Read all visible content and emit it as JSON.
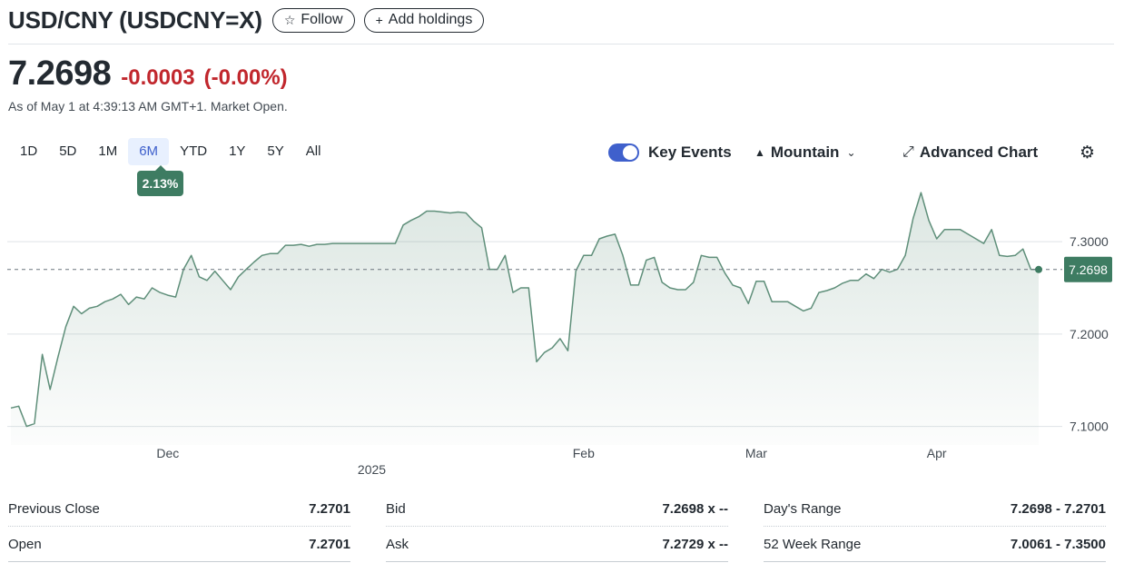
{
  "header": {
    "title": "USD/CNY (USDCNY=X)",
    "follow_label": "Follow",
    "add_holdings_label": "Add holdings"
  },
  "quote": {
    "price": "7.2698",
    "change": "-0.0003",
    "change_percent": "(-0.00%)",
    "as_of": "As of May 1 at 4:39:13 AM GMT+1. Market Open.",
    "colors": {
      "negative": "#c1272d",
      "accent": "#3f60cc",
      "chart_line": "#5f8f7a",
      "badge": "#3e7c62"
    }
  },
  "ranges": [
    "1D",
    "5D",
    "1M",
    "6M",
    "YTD",
    "1Y",
    "5Y",
    "All"
  ],
  "active_range": "6M",
  "period_return": "2.13%",
  "tools": {
    "key_events_label": "Key Events",
    "key_events_on": true,
    "chart_type_label": "Mountain",
    "advanced_label": "Advanced Chart"
  },
  "chart_data": {
    "type": "area",
    "ylim": [
      7.08,
      7.36
    ],
    "yticks": [
      "7.3000",
      "7.2000",
      "7.1000"
    ],
    "ytick_values": [
      7.3,
      7.2,
      7.1
    ],
    "xtick_labels": [
      "Dec",
      "Feb",
      "Mar",
      "Apr"
    ],
    "xtick_index": [
      20,
      73,
      95,
      118
    ],
    "year_label": "2025",
    "year_label_index": 46,
    "reference_value": 7.2698,
    "reference_label": "7.2698",
    "values": [
      7.12,
      7.122,
      7.1,
      7.103,
      7.178,
      7.14,
      7.175,
      7.208,
      7.23,
      7.222,
      7.228,
      7.23,
      7.235,
      7.238,
      7.243,
      7.232,
      7.24,
      7.238,
      7.25,
      7.245,
      7.242,
      7.24,
      7.27,
      7.285,
      7.262,
      7.258,
      7.268,
      7.258,
      7.248,
      7.262,
      7.27,
      7.278,
      7.285,
      7.287,
      7.287,
      7.296,
      7.296,
      7.297,
      7.295,
      7.297,
      7.297,
      7.298,
      7.298,
      7.298,
      7.298,
      7.298,
      7.298,
      7.298,
      7.298,
      7.298,
      7.318,
      7.323,
      7.327,
      7.333,
      7.333,
      7.332,
      7.331,
      7.332,
      7.331,
      7.322,
      7.315,
      7.27,
      7.27,
      7.285,
      7.245,
      7.25,
      7.25,
      7.17,
      7.18,
      7.185,
      7.195,
      7.182,
      7.268,
      7.285,
      7.285,
      7.303,
      7.306,
      7.308,
      7.285,
      7.253,
      7.253,
      7.28,
      7.283,
      7.256,
      7.25,
      7.248,
      7.248,
      7.256,
      7.285,
      7.283,
      7.283,
      7.266,
      7.253,
      7.25,
      7.233,
      7.257,
      7.257,
      7.235,
      7.235,
      7.235,
      7.23,
      7.225,
      7.228,
      7.245,
      7.247,
      7.25,
      7.255,
      7.258,
      7.258,
      7.265,
      7.26,
      7.27,
      7.267,
      7.27,
      7.285,
      7.325,
      7.353,
      7.323,
      7.303,
      7.313,
      7.313,
      7.313,
      7.308,
      7.303,
      7.298,
      7.313,
      7.285,
      7.284,
      7.285,
      7.292,
      7.27,
      7.2698
    ]
  },
  "stats": [
    [
      {
        "label": "Previous Close",
        "value": "7.2701"
      },
      {
        "label": "Bid",
        "value": "7.2698 x --"
      },
      {
        "label": "Day's Range",
        "value": "7.2698 - 7.2701"
      }
    ],
    [
      {
        "label": "Open",
        "value": "7.2701"
      },
      {
        "label": "Ask",
        "value": "7.2729 x --"
      },
      {
        "label": "52 Week Range",
        "value": "7.0061 - 7.3500"
      }
    ]
  ]
}
